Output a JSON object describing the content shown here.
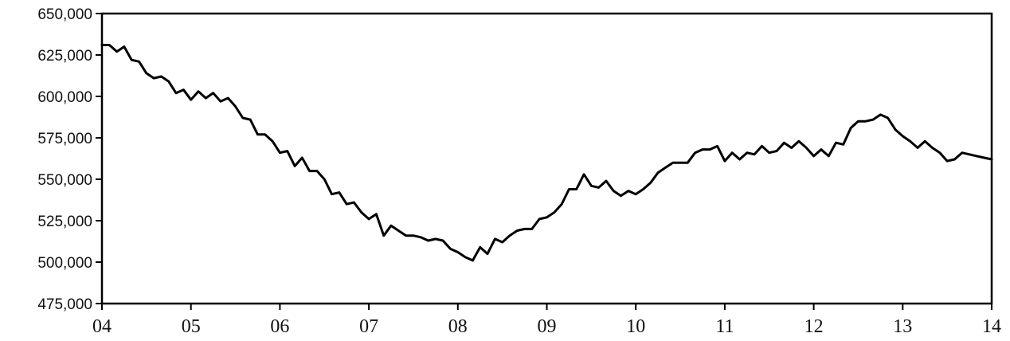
{
  "chart_data": {
    "type": "line",
    "title": "",
    "xlabel": "",
    "ylabel": "",
    "xlim": [
      2004.0,
      2014.0
    ],
    "ylim": [
      475000,
      650000
    ],
    "x_ticks": [
      {
        "value": 2004,
        "label": "04"
      },
      {
        "value": 2005,
        "label": "05"
      },
      {
        "value": 2006,
        "label": "06"
      },
      {
        "value": 2007,
        "label": "07"
      },
      {
        "value": 2008,
        "label": "08"
      },
      {
        "value": 2009,
        "label": "09"
      },
      {
        "value": 2010,
        "label": "10"
      },
      {
        "value": 2011,
        "label": "11"
      },
      {
        "value": 2012,
        "label": "12"
      },
      {
        "value": 2013,
        "label": "13"
      },
      {
        "value": 2014,
        "label": "14"
      }
    ],
    "y_ticks": [
      {
        "value": 475000,
        "label": "475,000"
      },
      {
        "value": 500000,
        "label": "500,000"
      },
      {
        "value": 525000,
        "label": "525,000"
      },
      {
        "value": 550000,
        "label": "550,000"
      },
      {
        "value": 575000,
        "label": "575,000"
      },
      {
        "value": 600000,
        "label": "600,000"
      },
      {
        "value": 625000,
        "label": "625,000"
      },
      {
        "value": 650000,
        "label": "650,000"
      }
    ],
    "grid": false,
    "legend": "none",
    "line_color": "#000000",
    "series": [
      {
        "x": [
          2004.0,
          2004.083,
          2004.167,
          2004.25,
          2004.333,
          2004.417,
          2004.5,
          2004.583,
          2004.667,
          2004.75,
          2004.833,
          2004.917,
          2005.0,
          2005.083,
          2005.167,
          2005.25,
          2005.333,
          2005.417,
          2005.5,
          2005.583,
          2005.667,
          2005.75,
          2005.833,
          2005.917,
          2006.0,
          2006.083,
          2006.167,
          2006.25,
          2006.333,
          2006.417,
          2006.5,
          2006.583,
          2006.667,
          2006.75,
          2006.833,
          2006.917,
          2007.0,
          2007.083,
          2007.167,
          2007.25,
          2007.333,
          2007.417,
          2007.5,
          2007.583,
          2007.667,
          2007.75,
          2007.833,
          2007.917,
          2008.0,
          2008.083,
          2008.167,
          2008.25,
          2008.333,
          2008.417,
          2008.5,
          2008.583,
          2008.667,
          2008.75,
          2008.833,
          2008.917,
          2009.0,
          2009.083,
          2009.167,
          2009.25,
          2009.333,
          2009.417,
          2009.5,
          2009.583,
          2009.667,
          2009.75,
          2009.833,
          2009.917,
          2010.0,
          2010.083,
          2010.167,
          2010.25,
          2010.333,
          2010.417,
          2010.5,
          2010.583,
          2010.667,
          2010.75,
          2010.833,
          2010.917,
          2011.0,
          2011.083,
          2011.167,
          2011.25,
          2011.333,
          2011.417,
          2011.5,
          2011.583,
          2011.667,
          2011.75,
          2011.833,
          2011.917,
          2012.0,
          2012.083,
          2012.167,
          2012.25,
          2012.333,
          2012.417,
          2012.5,
          2012.583,
          2012.667,
          2012.75,
          2012.833,
          2012.917,
          2013.0,
          2013.083,
          2013.167,
          2013.25,
          2013.333,
          2013.417,
          2013.5,
          2013.583,
          2013.667,
          2013.75,
          2013.833,
          2013.917,
          2014.0
        ],
        "values": [
          631000,
          631000,
          627000,
          630000,
          622000,
          621000,
          614000,
          611000,
          612000,
          609000,
          602000,
          604000,
          598000,
          603000,
          599000,
          602000,
          597000,
          599000,
          594000,
          587000,
          586000,
          577000,
          577000,
          573000,
          566000,
          567000,
          558000,
          563000,
          555000,
          555000,
          550000,
          541000,
          542000,
          535000,
          536000,
          530000,
          526000,
          529000,
          516000,
          522000,
          519000,
          516000,
          516000,
          515000,
          513000,
          514000,
          513000,
          508000,
          506000,
          503000,
          501000,
          509000,
          505000,
          514000,
          512000,
          516000,
          519000,
          520000,
          520000,
          526000,
          527000,
          530000,
          535000,
          544000,
          544000,
          553000,
          546000,
          545000,
          549000,
          543000,
          540000,
          543000,
          541000,
          544000,
          548000,
          554000,
          557000,
          560000,
          560000,
          560000,
          566000,
          568000,
          568000,
          570000,
          561000,
          566000,
          562000,
          566000,
          565000,
          570000,
          566000,
          567000,
          572000,
          569000,
          573000,
          569000,
          564000,
          568000,
          564000,
          572000,
          571000,
          581000,
          585000,
          585000,
          586000,
          589000,
          587000,
          580000,
          576000,
          573000,
          569000,
          573000,
          569000,
          566000,
          561000,
          562000,
          566000,
          565000,
          564000,
          563000,
          562000
        ]
      }
    ]
  }
}
